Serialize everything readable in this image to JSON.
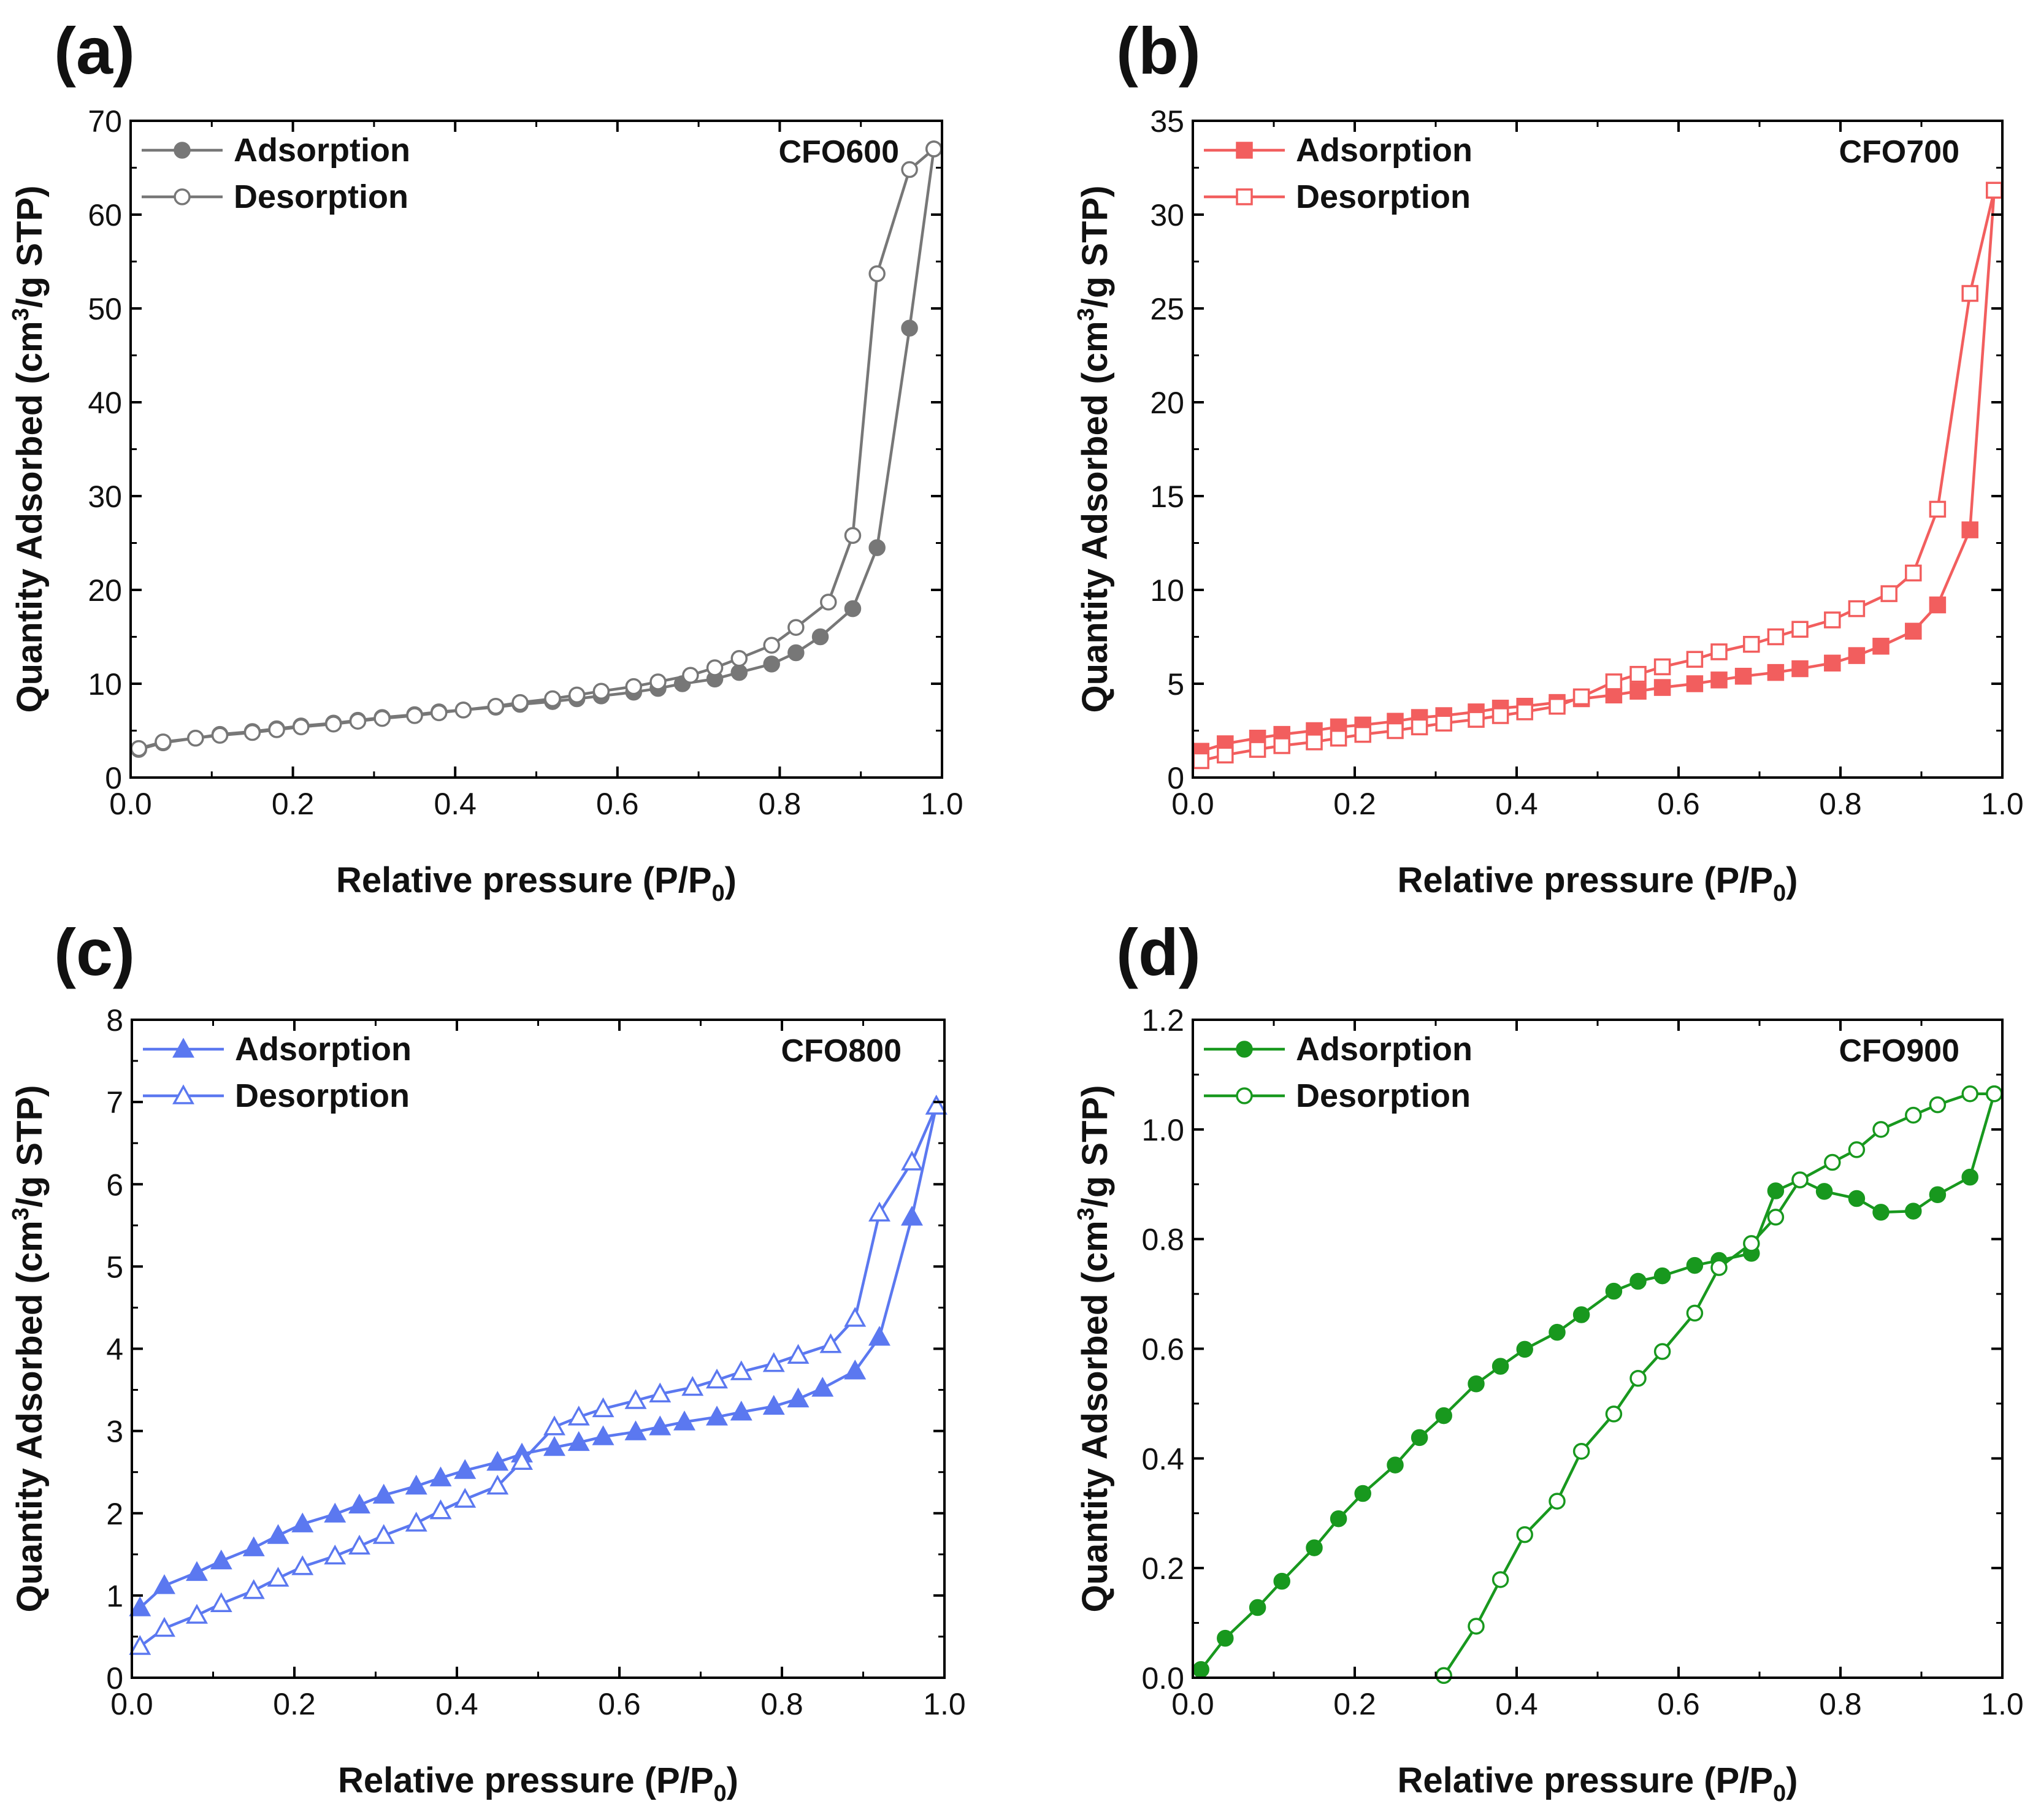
{
  "figure": {
    "x_label_main": "Relative pressure (P/P",
    "x_label_sub": "0",
    "x_label_end": ")",
    "y_label_pre": "Quantity Adsorbed (cm",
    "y_label_sup": "3",
    "y_label_post": "/g STP)"
  },
  "chart_data": [
    {
      "panel": "(a)",
      "type": "line",
      "sample": "CFO600",
      "color": "#777777",
      "marker": "circle",
      "xlabel": "Relative pressure (P/P0)",
      "ylabel": "Quantity Adsorbed (cm3/g STP)",
      "xlim": [
        0,
        1.0
      ],
      "ylim": [
        0,
        70
      ],
      "xticks": [
        0.0,
        0.2,
        0.4,
        0.6,
        0.8,
        1.0
      ],
      "xtick_labels": [
        "0.0",
        "0.2",
        "0.4",
        "0.6",
        "0.8",
        "1.0"
      ],
      "yticks": [
        0,
        10,
        20,
        30,
        40,
        50,
        60,
        70
      ],
      "ytick_labels": [
        "0",
        "10",
        "20",
        "30",
        "40",
        "50",
        "60",
        "70"
      ],
      "legend": [
        "Adsorption",
        "Desorption"
      ],
      "series": [
        {
          "name": "Adsorption",
          "filled": true,
          "x": [
            0.01,
            0.04,
            0.08,
            0.11,
            0.15,
            0.18,
            0.21,
            0.25,
            0.28,
            0.31,
            0.35,
            0.38,
            0.41,
            0.45,
            0.48,
            0.52,
            0.55,
            0.58,
            0.62,
            0.65,
            0.68,
            0.72,
            0.75,
            0.79,
            0.82,
            0.85,
            0.89,
            0.92,
            0.96,
            0.99
          ],
          "y": [
            3.0,
            3.7,
            4.2,
            4.6,
            4.9,
            5.2,
            5.5,
            5.8,
            6.1,
            6.4,
            6.7,
            7.0,
            7.2,
            7.5,
            7.8,
            8.1,
            8.4,
            8.7,
            9.1,
            9.5,
            10.0,
            10.5,
            11.2,
            12.1,
            13.3,
            15.0,
            18.0,
            24.5,
            47.9,
            67.0
          ]
        },
        {
          "name": "Desorption",
          "filled": false,
          "x": [
            0.99,
            0.96,
            0.92,
            0.89,
            0.86,
            0.82,
            0.79,
            0.75,
            0.72,
            0.69,
            0.65,
            0.62,
            0.58,
            0.55,
            0.52,
            0.48,
            0.45,
            0.41,
            0.38,
            0.35,
            0.31,
            0.28,
            0.25,
            0.21,
            0.18,
            0.15,
            0.11,
            0.08,
            0.04,
            0.01
          ],
          "y": [
            67.0,
            64.8,
            53.7,
            25.8,
            18.7,
            16.0,
            14.1,
            12.7,
            11.7,
            10.9,
            10.2,
            9.7,
            9.2,
            8.8,
            8.4,
            8.0,
            7.6,
            7.2,
            6.9,
            6.6,
            6.3,
            6.0,
            5.7,
            5.4,
            5.1,
            4.8,
            4.5,
            4.2,
            3.8,
            3.1
          ]
        }
      ]
    },
    {
      "panel": "(b)",
      "type": "line",
      "sample": "CFO700",
      "color": "#F25E5E",
      "marker": "square",
      "xlabel": "Relative pressure (P/P0)",
      "ylabel": "Quantity Adsorbed (cm3/g STP)",
      "xlim": [
        0,
        1.0
      ],
      "ylim": [
        0,
        35
      ],
      "xticks": [
        0.0,
        0.2,
        0.4,
        0.6,
        0.8,
        1.0
      ],
      "xtick_labels": [
        "0.0",
        "0.2",
        "0.4",
        "0.6",
        "0.8",
        "1.0"
      ],
      "yticks": [
        0,
        5,
        10,
        15,
        20,
        25,
        30,
        35
      ],
      "ytick_labels": [
        "0",
        "5",
        "10",
        "15",
        "20",
        "25",
        "30",
        "35"
      ],
      "legend": [
        "Adsorption",
        "Desorption"
      ],
      "series": [
        {
          "name": "Adsorption",
          "filled": true,
          "x": [
            0.01,
            0.04,
            0.08,
            0.11,
            0.15,
            0.18,
            0.21,
            0.25,
            0.28,
            0.31,
            0.35,
            0.38,
            0.41,
            0.45,
            0.48,
            0.52,
            0.55,
            0.58,
            0.62,
            0.65,
            0.68,
            0.72,
            0.75,
            0.79,
            0.82,
            0.85,
            0.89,
            0.92,
            0.96,
            0.99
          ],
          "y": [
            1.4,
            1.8,
            2.1,
            2.3,
            2.5,
            2.7,
            2.8,
            3.0,
            3.2,
            3.3,
            3.5,
            3.7,
            3.8,
            4.0,
            4.2,
            4.4,
            4.6,
            4.8,
            5.0,
            5.2,
            5.4,
            5.6,
            5.8,
            6.1,
            6.5,
            7.0,
            7.8,
            9.2,
            13.2,
            31.3
          ]
        },
        {
          "name": "Desorption",
          "filled": false,
          "x": [
            0.99,
            0.96,
            0.92,
            0.89,
            0.86,
            0.82,
            0.79,
            0.75,
            0.72,
            0.69,
            0.65,
            0.62,
            0.58,
            0.55,
            0.52,
            0.48,
            0.45,
            0.41,
            0.38,
            0.35,
            0.31,
            0.28,
            0.25,
            0.21,
            0.18,
            0.15,
            0.11,
            0.08,
            0.04,
            0.01
          ],
          "y": [
            31.3,
            25.8,
            14.3,
            10.9,
            9.8,
            9.0,
            8.4,
            7.9,
            7.5,
            7.1,
            6.7,
            6.3,
            5.9,
            5.5,
            5.1,
            4.3,
            3.8,
            3.5,
            3.3,
            3.1,
            2.9,
            2.7,
            2.5,
            2.3,
            2.1,
            1.9,
            1.7,
            1.5,
            1.2,
            0.9
          ]
        }
      ]
    },
    {
      "panel": "(c)",
      "type": "line",
      "sample": "CFO800",
      "color": "#5B78F0",
      "marker": "triangle",
      "xlabel": "Relative pressure (P/P0)",
      "ylabel": "Quantity Adsorbed (cm3/g STP)",
      "xlim": [
        0,
        1.0
      ],
      "ylim": [
        0,
        8
      ],
      "xticks": [
        0.0,
        0.2,
        0.4,
        0.6,
        0.8,
        1.0
      ],
      "xtick_labels": [
        "0.0",
        "0.2",
        "0.4",
        "0.6",
        "0.8",
        "1.0"
      ],
      "yticks": [
        0,
        1,
        2,
        3,
        4,
        5,
        6,
        7,
        8
      ],
      "ytick_labels": [
        "0",
        "1",
        "2",
        "3",
        "4",
        "5",
        "6",
        "7",
        "8"
      ],
      "legend": [
        "Adsorption",
        "Desorption"
      ],
      "series": [
        {
          "name": "Adsorption",
          "filled": true,
          "x": [
            0.01,
            0.04,
            0.08,
            0.11,
            0.15,
            0.18,
            0.21,
            0.25,
            0.28,
            0.31,
            0.35,
            0.38,
            0.41,
            0.45,
            0.48,
            0.52,
            0.55,
            0.58,
            0.62,
            0.65,
            0.68,
            0.72,
            0.75,
            0.79,
            0.82,
            0.85,
            0.89,
            0.92,
            0.96,
            0.99
          ],
          "y": [
            0.85,
            1.12,
            1.28,
            1.42,
            1.58,
            1.73,
            1.87,
            1.99,
            2.1,
            2.22,
            2.33,
            2.43,
            2.52,
            2.62,
            2.72,
            2.8,
            2.86,
            2.93,
            2.99,
            3.05,
            3.11,
            3.17,
            3.23,
            3.3,
            3.39,
            3.52,
            3.73,
            4.14,
            5.6,
            6.95
          ]
        },
        {
          "name": "Desorption",
          "filled": false,
          "x": [
            0.99,
            0.96,
            0.92,
            0.89,
            0.86,
            0.82,
            0.79,
            0.75,
            0.72,
            0.69,
            0.65,
            0.62,
            0.58,
            0.55,
            0.52,
            0.48,
            0.45,
            0.41,
            0.38,
            0.35,
            0.31,
            0.28,
            0.25,
            0.21,
            0.18,
            0.15,
            0.11,
            0.08,
            0.04,
            0.01
          ],
          "y": [
            6.95,
            6.27,
            5.65,
            4.37,
            4.05,
            3.92,
            3.82,
            3.72,
            3.62,
            3.53,
            3.45,
            3.37,
            3.27,
            3.17,
            3.05,
            2.63,
            2.33,
            2.17,
            2.03,
            1.88,
            1.73,
            1.6,
            1.48,
            1.35,
            1.21,
            1.06,
            0.9,
            0.76,
            0.6,
            0.38
          ]
        }
      ]
    },
    {
      "panel": "(d)",
      "type": "line",
      "sample": "CFO900",
      "color": "#18981E",
      "marker": "circle",
      "xlabel": "Relative pressure (P/P0)",
      "ylabel": "Quantity Adsorbed (cm3/g STP)",
      "xlim": [
        0,
        1.0
      ],
      "ylim": [
        0,
        1.2
      ],
      "xticks": [
        0.0,
        0.2,
        0.4,
        0.6,
        0.8,
        1.0
      ],
      "xtick_labels": [
        "0.0",
        "0.2",
        "0.4",
        "0.6",
        "0.8",
        "1.0"
      ],
      "yticks": [
        0.0,
        0.2,
        0.4,
        0.6,
        0.8,
        1.0,
        1.2
      ],
      "ytick_labels": [
        "0.0",
        "0.2",
        "0.4",
        "0.6",
        "0.8",
        "1.0",
        "1.2"
      ],
      "legend": [
        "Adsorption",
        "Desorption"
      ],
      "series": [
        {
          "name": "Adsorption",
          "filled": true,
          "x": [
            0.01,
            0.04,
            0.08,
            0.11,
            0.15,
            0.18,
            0.21,
            0.25,
            0.28,
            0.31,
            0.35,
            0.38,
            0.41,
            0.45,
            0.48,
            0.52,
            0.55,
            0.58,
            0.62,
            0.65,
            0.69,
            0.72,
            0.75,
            0.78,
            0.82,
            0.85,
            0.89,
            0.92,
            0.96,
            0.99
          ],
          "y": [
            0.015,
            0.072,
            0.128,
            0.176,
            0.237,
            0.29,
            0.336,
            0.388,
            0.438,
            0.478,
            0.536,
            0.568,
            0.599,
            0.63,
            0.662,
            0.705,
            0.723,
            0.733,
            0.752,
            0.761,
            0.774,
            0.888,
            0.908,
            0.887,
            0.874,
            0.849,
            0.851,
            0.881,
            0.913,
            1.065
          ]
        },
        {
          "name": "Desorption",
          "filled": false,
          "x": [
            0.99,
            0.96,
            0.92,
            0.89,
            0.85,
            0.82,
            0.79,
            0.75,
            0.72,
            0.69,
            0.65,
            0.62,
            0.58,
            0.55,
            0.52,
            0.48,
            0.45,
            0.41,
            0.38,
            0.35,
            0.31
          ],
          "y": [
            1.065,
            1.065,
            1.045,
            1.026,
            1.0,
            0.963,
            0.94,
            0.908,
            0.84,
            0.792,
            0.748,
            0.665,
            0.595,
            0.546,
            0.481,
            0.413,
            0.322,
            0.261,
            0.179,
            0.094,
            0.004
          ]
        }
      ]
    }
  ]
}
